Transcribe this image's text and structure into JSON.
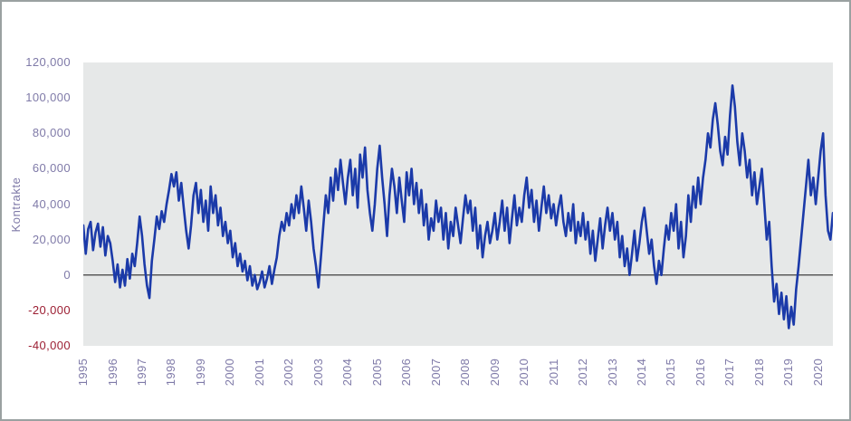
{
  "colors": {
    "line": "#1b3aa9",
    "plot_background": "#e6e8e8",
    "axis_text": "#7f7aa8",
    "negative_axis_text": "#9c1f33",
    "zero_line": "#3f3f3f",
    "frame_border": "#9aa1a1",
    "page_background": "#ffffff"
  },
  "chart_data": {
    "type": "line",
    "title": "",
    "ylabel": "Kontrakte",
    "xlabel": "",
    "ylim": [
      -40000,
      120000
    ],
    "y_tick_step": 20000,
    "y_tick_labels": [
      "120,000",
      "100,000",
      "80,000",
      "60,000",
      "40,000",
      "20,000",
      "0",
      "-20,000",
      "-40,000"
    ],
    "x_tick_labels": [
      "1995",
      "1996",
      "1997",
      "1998",
      "1999",
      "2000",
      "2001",
      "2002",
      "2003",
      "2004",
      "2005",
      "2006",
      "2007",
      "2008",
      "2009",
      "2010",
      "2011",
      "2012",
      "2013",
      "2014",
      "2015",
      "2016",
      "2017",
      "2018",
      "2019",
      "2020"
    ],
    "x_start_year": 1995,
    "points_per_year": 12,
    "grid": false,
    "legend": false,
    "values": [
      28000,
      12000,
      26000,
      30000,
      14000,
      24000,
      29000,
      16000,
      27000,
      11000,
      22000,
      18000,
      8000,
      -4000,
      6000,
      -7000,
      3000,
      -6000,
      9000,
      -2000,
      12000,
      5000,
      18000,
      33000,
      22000,
      6000,
      -6000,
      -13000,
      8000,
      20000,
      33000,
      26000,
      36000,
      30000,
      40000,
      48000,
      57000,
      50000,
      58000,
      42000,
      52000,
      38000,
      25000,
      15000,
      28000,
      45000,
      52000,
      35000,
      48000,
      30000,
      42000,
      25000,
      50000,
      35000,
      45000,
      28000,
      38000,
      22000,
      30000,
      18000,
      25000,
      10000,
      18000,
      5000,
      12000,
      2000,
      8000,
      -3000,
      5000,
      -6000,
      0,
      -8000,
      -4000,
      2000,
      -7000,
      -2000,
      5000,
      -5000,
      3000,
      10000,
      22000,
      30000,
      25000,
      35000,
      28000,
      40000,
      32000,
      45000,
      35000,
      50000,
      38000,
      25000,
      42000,
      30000,
      15000,
      5000,
      -7000,
      10000,
      28000,
      45000,
      35000,
      55000,
      42000,
      60000,
      48000,
      65000,
      52000,
      40000,
      55000,
      65000,
      45000,
      60000,
      38000,
      68000,
      55000,
      72000,
      48000,
      35000,
      25000,
      40000,
      60000,
      73000,
      55000,
      40000,
      22000,
      45000,
      60000,
      50000,
      35000,
      55000,
      42000,
      30000,
      58000,
      45000,
      60000,
      40000,
      52000,
      35000,
      48000,
      28000,
      40000,
      20000,
      32000,
      25000,
      42000,
      30000,
      38000,
      20000,
      35000,
      15000,
      30000,
      22000,
      38000,
      28000,
      18000,
      32000,
      45000,
      35000,
      42000,
      25000,
      38000,
      15000,
      28000,
      10000,
      22000,
      30000,
      18000,
      25000,
      35000,
      20000,
      30000,
      42000,
      25000,
      38000,
      18000,
      32000,
      45000,
      28000,
      38000,
      30000,
      45000,
      55000,
      38000,
      48000,
      30000,
      42000,
      25000,
      38000,
      50000,
      35000,
      45000,
      32000,
      40000,
      28000,
      38000,
      45000,
      30000,
      22000,
      35000,
      25000,
      40000,
      18000,
      30000,
      22000,
      35000,
      20000,
      30000,
      12000,
      25000,
      8000,
      20000,
      32000,
      15000,
      28000,
      38000,
      25000,
      35000,
      20000,
      30000,
      10000,
      22000,
      5000,
      15000,
      0,
      12000,
      25000,
      8000,
      18000,
      30000,
      38000,
      25000,
      12000,
      20000,
      5000,
      -5000,
      8000,
      0,
      15000,
      28000,
      20000,
      35000,
      25000,
      40000,
      15000,
      30000,
      10000,
      22000,
      45000,
      30000,
      50000,
      38000,
      55000,
      40000,
      55000,
      65000,
      80000,
      72000,
      88000,
      97000,
      85000,
      70000,
      62000,
      78000,
      68000,
      90000,
      107000,
      95000,
      75000,
      62000,
      80000,
      70000,
      55000,
      65000,
      45000,
      58000,
      40000,
      50000,
      60000,
      40000,
      20000,
      30000,
      5000,
      -15000,
      -5000,
      -22000,
      -10000,
      -25000,
      -12000,
      -30000,
      -18000,
      -28000,
      -8000,
      5000,
      20000,
      35000,
      50000,
      65000,
      45000,
      55000,
      40000,
      55000,
      70000,
      80000,
      45000,
      25000,
      20000,
      35000
    ]
  }
}
